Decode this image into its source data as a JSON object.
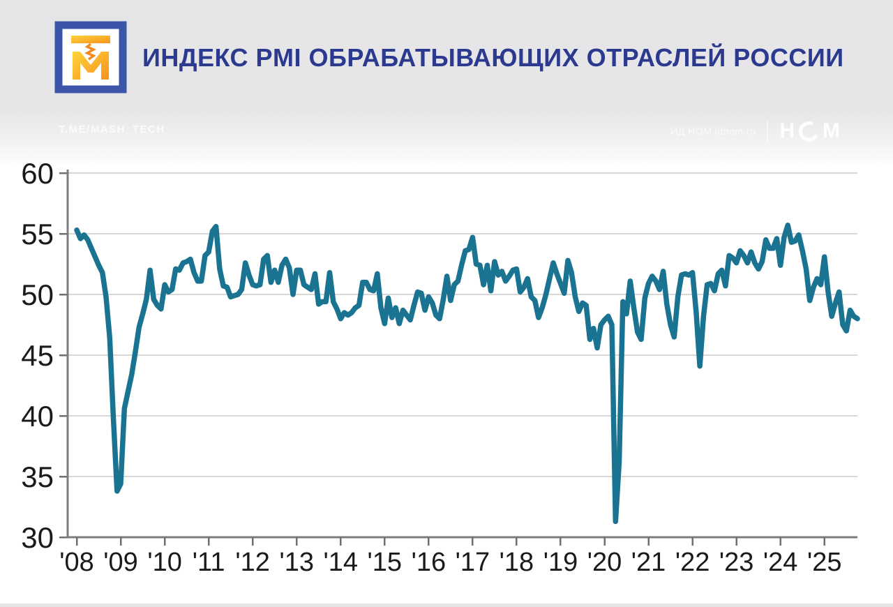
{
  "header": {
    "title": "ИНДЕКС PMI ОБРАБАТЫВАЮЩИХ ОТРАСЛЕЙ РОССИИ",
    "watermark_left": "T.ME/MASH_TECH",
    "watermark_right": "ИД НОМ idnom.ru",
    "brand": {
      "h": "Н",
      "m": "М"
    },
    "logo_colors": {
      "frame": "#3b55a8",
      "glyph_top": "#ffd43c",
      "glyph_bottom": "#f6921e"
    }
  },
  "chart_data": {
    "type": "line",
    "title": "ИНДЕКС PMI ОБРАБАТЫВАЮЩИХ ОТРАСЛЕЙ РОССИИ",
    "frequency": "monthly",
    "x_start": "2008-01",
    "x_end": "2025-10",
    "x_tick_labels": [
      "'08",
      "'09",
      "'10",
      "'11",
      "'12",
      "'13",
      "'14",
      "'15",
      "'16",
      "'17",
      "'18",
      "'19",
      "'20",
      "'21",
      "'22",
      "'23",
      "'24",
      "'25"
    ],
    "y_ticks": [
      30,
      35,
      40,
      45,
      50,
      55,
      60
    ],
    "ylim": [
      30,
      60
    ],
    "grid": true,
    "legend": "none",
    "series": [
      {
        "name": "Индекс PMI обрабатывающих отраслей России",
        "values": [
          55.3,
          54.6,
          54.9,
          54.5,
          53.8,
          53.1,
          52.4,
          51.8,
          49.8,
          46.4,
          39.8,
          33.8,
          34.4,
          40.6,
          42.0,
          43.4,
          45.3,
          47.3,
          48.4,
          49.6,
          52.0,
          49.6,
          49.1,
          48.8,
          50.8,
          50.2,
          50.4,
          52.1,
          52.0,
          52.6,
          52.7,
          52.9,
          51.8,
          51.1,
          51.1,
          53.2,
          53.5,
          55.2,
          55.6,
          52.1,
          50.7,
          50.6,
          49.8,
          49.9,
          50.0,
          50.4,
          52.6,
          51.6,
          50.8,
          50.7,
          50.8,
          52.9,
          53.2,
          51.0,
          52.0,
          51.0,
          52.4,
          52.9,
          52.2,
          50.0,
          52.0,
          52.0,
          50.8,
          50.6,
          50.4,
          51.7,
          49.2,
          49.4,
          49.4,
          51.8,
          49.4,
          48.8,
          48.0,
          48.5,
          48.3,
          48.5,
          48.9,
          49.1,
          51.0,
          51.0,
          50.4,
          50.3,
          51.7,
          48.9,
          47.6,
          49.7,
          48.1,
          48.9,
          47.6,
          48.7,
          48.3,
          47.9,
          49.1,
          50.2,
          50.1,
          48.7,
          49.8,
          49.3,
          48.3,
          48.0,
          49.6,
          51.5,
          49.5,
          50.8,
          51.1,
          52.4,
          53.6,
          53.7,
          54.7,
          52.5,
          52.4,
          50.8,
          52.4,
          50.3,
          52.7,
          51.6,
          51.9,
          51.1,
          51.5,
          52.0,
          52.1,
          50.2,
          50.6,
          51.3,
          49.8,
          49.5,
          48.1,
          48.9,
          50.0,
          51.3,
          52.6,
          51.7,
          50.9,
          50.1,
          52.8,
          51.8,
          49.8,
          48.6,
          49.3,
          49.1,
          46.3,
          47.2,
          45.6,
          47.5,
          47.9,
          48.2,
          47.5,
          31.3,
          36.2,
          49.4,
          48.4,
          51.1,
          48.9,
          46.9,
          46.3,
          49.7,
          50.9,
          51.5,
          51.1,
          50.4,
          51.9,
          49.2,
          47.5,
          46.5,
          49.8,
          51.6,
          51.7,
          51.6,
          51.8,
          48.6,
          44.1,
          48.2,
          50.8,
          50.9,
          50.3,
          51.7,
          52.0,
          50.7,
          53.2,
          53.0,
          52.6,
          53.6,
          53.2,
          52.6,
          53.5,
          52.6,
          52.1,
          52.7,
          54.5,
          53.8,
          53.8,
          54.6,
          52.4,
          54.7,
          55.7,
          54.3,
          54.4,
          54.9,
          53.6,
          52.1,
          49.5,
          50.6,
          51.3,
          50.8,
          53.1,
          50.2,
          48.2,
          49.3,
          50.2,
          47.5,
          47.0,
          48.7,
          48.2,
          48.0
        ]
      }
    ],
    "colors": {
      "line": "#1a7391",
      "grid": "#d7d7d7",
      "axis": "#7d7d7d",
      "tick": "#6f6f6f",
      "tick_label": "#1a1a1a"
    }
  }
}
